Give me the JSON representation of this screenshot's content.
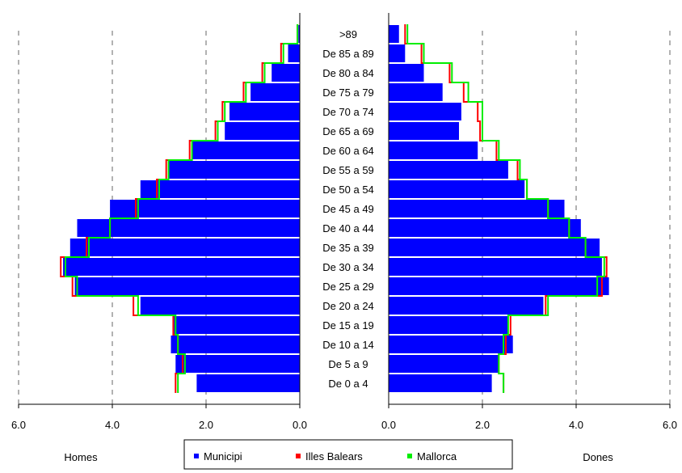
{
  "chart_data": {
    "type": "bar",
    "subtype": "population-pyramid",
    "xlim": [
      0,
      6
    ],
    "ticks": [
      "0.0",
      "2.0",
      "4.0",
      "6.0"
    ],
    "left_label": "Homes",
    "right_label": "Dones",
    "grid": "dashed vertical lines at 2.0 and 4.0 and 6.0",
    "legend_position": "bottom",
    "categories": [
      "De 0 a 4",
      "De 5 a 9",
      "De 10 a 14",
      "De 15 a 19",
      "De 20 a 24",
      "De 25 a 29",
      "De 30 a 34",
      "De 35 a 39",
      "De 40 a 44",
      "De 45 a 49",
      "De 50 a 54",
      "De 55 a 59",
      "De 60 a 64",
      "De 65 a 69",
      "De 70 a 74",
      "De 75 a 79",
      "De 80 a 84",
      "De 85 a 89",
      ">89"
    ],
    "series": [
      {
        "name": "Municipi",
        "color": "#0000ff",
        "style": "bar",
        "homes": [
          2.2,
          2.65,
          2.75,
          2.7,
          3.4,
          4.8,
          5.05,
          4.9,
          4.75,
          4.05,
          3.4,
          2.8,
          2.3,
          1.6,
          1.5,
          1.05,
          0.6,
          0.25,
          0.03
        ],
        "dones": [
          2.2,
          2.35,
          2.65,
          2.55,
          3.3,
          4.7,
          4.55,
          4.5,
          4.1,
          3.75,
          2.9,
          2.55,
          1.9,
          1.5,
          1.55,
          1.15,
          0.75,
          0.35,
          0.22
        ]
      },
      {
        "name": "Illes Balears",
        "color": "#ff0000",
        "style": "outline",
        "homes": [
          2.65,
          2.5,
          2.6,
          2.7,
          3.55,
          4.85,
          5.1,
          4.55,
          4.05,
          3.5,
          3.05,
          2.85,
          2.35,
          1.8,
          1.65,
          1.2,
          0.8,
          0.4,
          0.05
        ],
        "dones": [
          2.45,
          2.35,
          2.5,
          2.6,
          3.35,
          4.55,
          4.65,
          4.2,
          3.85,
          3.4,
          2.95,
          2.75,
          2.3,
          1.95,
          1.9,
          1.6,
          1.3,
          0.7,
          0.35
        ]
      },
      {
        "name": "Mallorca",
        "color": "#00ee00",
        "style": "outline",
        "homes": [
          2.6,
          2.45,
          2.6,
          2.65,
          3.45,
          4.75,
          5.0,
          4.5,
          4.05,
          3.45,
          3.0,
          2.8,
          2.3,
          1.75,
          1.6,
          1.15,
          0.75,
          0.35,
          0.05
        ],
        "dones": [
          2.45,
          2.35,
          2.45,
          2.55,
          3.4,
          4.45,
          4.6,
          4.2,
          3.85,
          3.4,
          2.95,
          2.8,
          2.35,
          2.0,
          2.0,
          1.7,
          1.35,
          0.75,
          0.4
        ]
      }
    ]
  }
}
